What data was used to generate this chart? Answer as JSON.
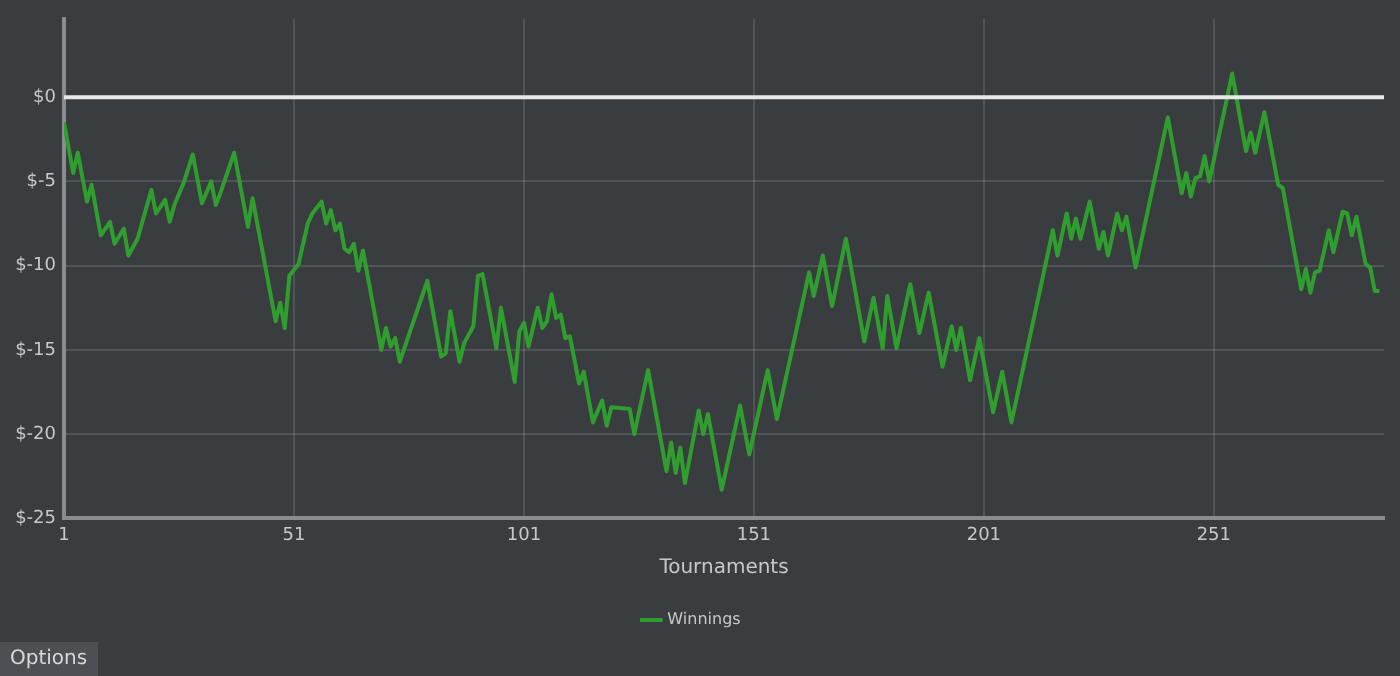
{
  "chart_data": {
    "type": "line",
    "xlabel": "Tournaments",
    "legend": "bottom",
    "grid": true,
    "marker": "none",
    "xlim": [
      1,
      288
    ],
    "xticks": [
      1,
      51,
      101,
      151,
      201,
      251
    ],
    "ylim": [
      -25,
      4.65
    ],
    "yticks": [
      {
        "value": -25,
        "label": "$-25"
      },
      {
        "value": -20,
        "label": "$-20"
      },
      {
        "value": -15,
        "label": "$-15"
      },
      {
        "value": -10,
        "label": "$-10"
      },
      {
        "value": -5,
        "label": "$-5"
      },
      {
        "value": 0,
        "label": "$0"
      }
    ],
    "ref_lines": [
      {
        "axis": "y",
        "value": 0,
        "color": "#e8e8e8"
      }
    ],
    "annotations": [
      "Options"
    ],
    "series": [
      {
        "name": "Winnings",
        "color": "#2f9e2f",
        "x": [
          1,
          3,
          4,
          6,
          7,
          9,
          11,
          12,
          14,
          15,
          17,
          20,
          21,
          23,
          24,
          25,
          27,
          29,
          31,
          33,
          34,
          35,
          38,
          41,
          42,
          47,
          48,
          49,
          50,
          52,
          54,
          55,
          57,
          58,
          59,
          60,
          61,
          62,
          63,
          64,
          65,
          66,
          70,
          71,
          72,
          73,
          74,
          77,
          80,
          83,
          84,
          85,
          87,
          88,
          90,
          91,
          92,
          95,
          96,
          99,
          100,
          101,
          102,
          104,
          105,
          106,
          107,
          108,
          109,
          110,
          111,
          113,
          114,
          116,
          118,
          119,
          120,
          124,
          125,
          128,
          132,
          133,
          134,
          135,
          136,
          139,
          140,
          141,
          144,
          148,
          150,
          154,
          156,
          163,
          164,
          166,
          168,
          171,
          175,
          177,
          179,
          180,
          182,
          185,
          187,
          189,
          192,
          194,
          195,
          196,
          198,
          200,
          203,
          205,
          207,
          216,
          217,
          219,
          220,
          221,
          222,
          224,
          226,
          227,
          228,
          230,
          231,
          232,
          234,
          241,
          244,
          245,
          246,
          247,
          248,
          249,
          250,
          255,
          258,
          259,
          260,
          262,
          265,
          266,
          270,
          271,
          272,
          273,
          274,
          276,
          277,
          279,
          280,
          281,
          282,
          284,
          285,
          286,
          287
        ],
        "values": [
          -1.5,
          -4.5,
          -3.3,
          -6.2,
          -5.2,
          -8.2,
          -7.4,
          -8.7,
          -7.8,
          -9.4,
          -8.4,
          -5.5,
          -6.9,
          -6.1,
          -7.4,
          -6.4,
          -5.1,
          -3.4,
          -6.3,
          -5.0,
          -6.4,
          -5.7,
          -3.3,
          -7.7,
          -6.0,
          -13.3,
          -12.2,
          -13.7,
          -10.6,
          -9.9,
          -7.5,
          -6.9,
          -6.2,
          -7.5,
          -6.7,
          -7.9,
          -7.5,
          -9.0,
          -9.2,
          -8.7,
          -10.3,
          -9.1,
          -15.0,
          -13.7,
          -14.8,
          -14.3,
          -15.7,
          -13.3,
          -10.9,
          -15.4,
          -15.2,
          -12.7,
          -15.7,
          -14.6,
          -13.6,
          -10.6,
          -10.5,
          -14.9,
          -12.5,
          -16.9,
          -13.9,
          -13.4,
          -14.8,
          -12.5,
          -13.7,
          -13.3,
          -11.7,
          -13.1,
          -12.9,
          -14.3,
          -14.2,
          -17.0,
          -16.3,
          -19.3,
          -18.0,
          -19.5,
          -18.4,
          -18.5,
          -20.0,
          -16.2,
          -22.2,
          -20.5,
          -22.3,
          -20.8,
          -22.9,
          -18.6,
          -20.0,
          -18.8,
          -23.3,
          -18.3,
          -21.2,
          -16.2,
          -19.1,
          -10.4,
          -11.8,
          -9.4,
          -12.4,
          -8.4,
          -14.5,
          -11.9,
          -14.9,
          -11.8,
          -14.9,
          -11.1,
          -14.0,
          -11.6,
          -16.0,
          -13.6,
          -15.0,
          -13.7,
          -16.8,
          -14.3,
          -18.7,
          -16.3,
          -19.3,
          -7.9,
          -9.4,
          -6.9,
          -8.4,
          -7.2,
          -8.4,
          -6.2,
          -9.0,
          -8.0,
          -9.4,
          -6.9,
          -7.9,
          -7.1,
          -10.1,
          -1.2,
          -5.7,
          -4.5,
          -5.9,
          -4.8,
          -4.7,
          -3.5,
          -5.0,
          1.4,
          -3.2,
          -2.1,
          -3.3,
          -0.9,
          -5.2,
          -5.4,
          -11.4,
          -10.2,
          -11.6,
          -10.4,
          -10.3,
          -7.9,
          -9.2,
          -6.8,
          -6.9,
          -8.2,
          -7.1,
          -9.9,
          -10.1,
          -11.5,
          -11.5
        ]
      }
    ]
  }
}
